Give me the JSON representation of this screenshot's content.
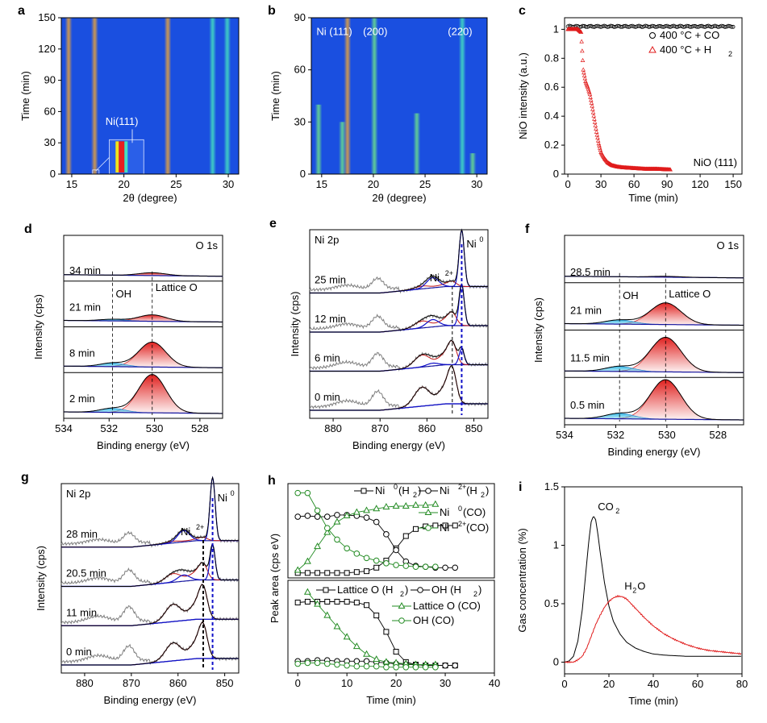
{
  "figure": {
    "panel_labels": [
      "a",
      "b",
      "c",
      "d",
      "e",
      "f",
      "g",
      "h",
      "i"
    ]
  },
  "colors": {
    "heatmap_bg": "#1a4fe0",
    "heatmap_line_orange": "#e8a33a",
    "heatmap_line_cyan": "#44e0c0",
    "heatmap_line_green": "#6ce08a",
    "co_series": "#000000",
    "h2_series": "#e01b1b",
    "envelope": "#000000",
    "background_line": "#1515a0",
    "lattice_fill": "#e0201e",
    "oh_fill": "#33bbe6",
    "ni0_fit": "#1010c8",
    "ni2_fit": "#c21818",
    "raw_spectrum": "#808080",
    "co_green": "#228b22"
  },
  "chart_data": [
    {
      "panel": "a",
      "type": "heatmap",
      "xlabel": "2θ (degree)",
      "ylabel": "Time (min)",
      "xlim": [
        14,
        31
      ],
      "ylim": [
        0,
        150
      ],
      "xticks": [
        15,
        20,
        25,
        30
      ],
      "yticks": [
        0,
        30,
        60,
        90,
        120,
        150
      ],
      "lines_2theta": [
        14.7,
        17.2,
        24.2,
        28.5,
        29.9
      ],
      "annotation": "Ni(111)"
    },
    {
      "panel": "b",
      "type": "heatmap",
      "xlabel": "2θ (degree)",
      "ylabel": "Time (min)",
      "xlim": [
        14,
        31
      ],
      "ylim": [
        0,
        90
      ],
      "xticks": [
        15,
        20,
        25,
        30
      ],
      "yticks": [
        0,
        30,
        60,
        90
      ],
      "lines_2theta": [
        14.7,
        17.0,
        17.5,
        20.1,
        24.2,
        28.6,
        29.6
      ],
      "annotations": [
        "Ni (111)",
        "(200)",
        "(220)"
      ]
    },
    {
      "panel": "c",
      "type": "scatter",
      "xlabel": "Time (min)",
      "ylabel": "NiO intensity (a.u.)",
      "xlim": [
        -3,
        158
      ],
      "ylim": [
        0,
        1.08
      ],
      "xticks": [
        0,
        30,
        60,
        90,
        120,
        150
      ],
      "yticks": [
        0,
        0.2,
        0.4,
        0.6,
        0.8,
        1.0
      ],
      "annotation": "NiO (111)",
      "series": [
        {
          "name": "400 °C + CO",
          "x": [
            0,
            150
          ],
          "y": [
            1.02,
            1.02
          ]
        },
        {
          "name": "400 °C + H2",
          "x": [
            0,
            6,
            9,
            12,
            14,
            16,
            18,
            20,
            22,
            24,
            26,
            28,
            30,
            33,
            36,
            40,
            45,
            50,
            60,
            70,
            80,
            93
          ],
          "y": [
            1.0,
            1.0,
            1.0,
            0.98,
            0.72,
            0.64,
            0.6,
            0.55,
            0.47,
            0.38,
            0.29,
            0.21,
            0.15,
            0.11,
            0.08,
            0.06,
            0.05,
            0.045,
            0.04,
            0.035,
            0.035,
            0.03
          ]
        }
      ],
      "legend": [
        "400 °C + CO",
        "400 °C + H",
        "2"
      ]
    },
    {
      "panel": "d",
      "type": "line",
      "xlabel": "Binding energy (eV)",
      "ylabel": "Intensity (cps)",
      "xlim": [
        534,
        527
      ],
      "xticks": [
        534,
        532,
        530,
        528
      ],
      "title_tag": "O 1s",
      "rows": [
        {
          "label": "34 min",
          "lattice_amp": 0.07,
          "oh_amp": 0.0
        },
        {
          "label": "21 min",
          "lattice_amp": 0.16,
          "oh_amp": 0.04
        },
        {
          "label": "8 min",
          "lattice_amp": 0.62,
          "oh_amp": 0.09
        },
        {
          "label": "2 min",
          "lattice_amp": 0.95,
          "oh_amp": 0.1
        }
      ],
      "peak_labels": [
        "OH",
        "Lattice O"
      ],
      "refs": [
        531.85,
        530.1
      ]
    },
    {
      "panel": "e",
      "type": "line",
      "xlabel": "Binding energy (eV)",
      "ylabel": "Intensity (cps)",
      "xlim": [
        885,
        847
      ],
      "xticks": [
        880,
        870,
        860,
        850
      ],
      "title_tag": "Ni 2p",
      "rows": [
        {
          "label": "25 min",
          "ni0": 0.9,
          "ni2": 0.08
        },
        {
          "label": "12 min",
          "ni0": 0.65,
          "ni2": 0.2
        },
        {
          "label": "6 min",
          "ni0": 0.25,
          "ni2": 0.35
        },
        {
          "label": "0 min",
          "ni0": 0.0,
          "ni2": 0.55
        }
      ],
      "peak_labels": [
        "Ni",
        "2+",
        "Ni",
        "0"
      ],
      "refs": [
        854.6,
        852.6
      ]
    },
    {
      "panel": "f",
      "type": "line",
      "xlabel": "Binding energy (eV)",
      "ylabel": "Intensity (cps)",
      "xlim": [
        534,
        527
      ],
      "xticks": [
        534,
        532,
        530,
        528
      ],
      "title_tag": "O 1s",
      "rows": [
        {
          "label": "28.5 min",
          "lattice_amp": 0.02,
          "oh_amp": 0.0
        },
        {
          "label": "21 min",
          "lattice_amp": 0.52,
          "oh_amp": 0.1
        },
        {
          "label": "11.5 min",
          "lattice_amp": 0.83,
          "oh_amp": 0.12
        },
        {
          "label": "0.5 min",
          "lattice_amp": 0.95,
          "oh_amp": 0.13
        }
      ],
      "peak_labels": [
        "OH",
        "Lattice O"
      ],
      "refs": [
        531.85,
        530.05
      ]
    },
    {
      "panel": "g",
      "type": "line",
      "xlabel": "Binding energy (eV)",
      "ylabel": "Intensity (cps)",
      "xlim": [
        885,
        847
      ],
      "xticks": [
        880,
        870,
        860,
        850
      ],
      "title_tag": "Ni 2p",
      "rows": [
        {
          "label": "28 min",
          "ni0": 1.0,
          "ni2": 0.05
        },
        {
          "label": "20.5 min",
          "ni0": 0.55,
          "ni2": 0.25
        },
        {
          "label": "11 min",
          "ni0": 0.0,
          "ni2": 0.5
        },
        {
          "label": "0 min",
          "ni0": 0.0,
          "ni2": 0.52
        }
      ],
      "peak_labels": [
        "Ni",
        "2+",
        "Ni",
        "0"
      ],
      "refs": [
        854.6,
        852.6
      ]
    },
    {
      "panel": "h",
      "type": "line",
      "xlabel": "Time (min)",
      "ylabel": "Peak area (cps eV)",
      "xlim": [
        -2,
        40
      ],
      "xticks": [
        0,
        10,
        20,
        30,
        40
      ],
      "top": {
        "legend": [
          "Ni",
          "0",
          " (H",
          "2",
          ")",
          "Ni",
          "2+",
          " (H",
          "2",
          ")",
          "Ni",
          "0",
          " (CO)",
          "Ni",
          "2+",
          " (CO)"
        ],
        "series": [
          {
            "key": "ni0_h2",
            "marker": "square",
            "color": "#000000",
            "x": [
              0,
              2,
              4,
              6,
              8,
              10,
              12,
              14,
              16,
              18,
              20,
              22,
              24,
              26,
              28,
              30,
              32
            ],
            "y": [
              0.02,
              0.02,
              0.02,
              0.02,
              0.02,
              0.02,
              0.03,
              0.04,
              0.08,
              0.16,
              0.3,
              0.44,
              0.52,
              0.55,
              0.56,
              0.56,
              0.56
            ]
          },
          {
            "key": "ni2_h2",
            "marker": "circle",
            "color": "#000000",
            "x": [
              0,
              2,
              4,
              6,
              8,
              10,
              12,
              14,
              16,
              18,
              20,
              22,
              24,
              26,
              28,
              30,
              32
            ],
            "y": [
              0.66,
              0.67,
              0.66,
              0.66,
              0.68,
              0.68,
              0.67,
              0.65,
              0.6,
              0.46,
              0.28,
              0.15,
              0.1,
              0.09,
              0.08,
              0.08,
              0.08
            ]
          },
          {
            "key": "ni0_co",
            "marker": "triangle",
            "color": "#228b22",
            "x": [
              0,
              2,
              4,
              6,
              8,
              10,
              12,
              14,
              16,
              18,
              20,
              22,
              24,
              26,
              28
            ],
            "y": [
              0.05,
              0.15,
              0.32,
              0.48,
              0.6,
              0.67,
              0.71,
              0.73,
              0.75,
              0.77,
              0.78,
              0.78,
              0.79,
              0.79,
              0.8
            ]
          },
          {
            "key": "ni2_co",
            "marker": "circle",
            "color": "#228b22",
            "x": [
              0,
              2,
              4,
              6,
              8,
              10,
              12,
              14,
              16,
              18,
              20,
              22,
              24,
              26,
              28
            ],
            "y": [
              0.93,
              0.93,
              0.73,
              0.53,
              0.4,
              0.3,
              0.24,
              0.19,
              0.16,
              0.13,
              0.11,
              0.1,
              0.09,
              0.09,
              0.09
            ]
          }
        ]
      },
      "bottom": {
        "legend": [
          "Lattice O (H",
          "2",
          ")",
          "OH (H",
          "2",
          ")",
          "Lattice O (CO)",
          "OH (CO)"
        ],
        "series": [
          {
            "key": "lat_h2",
            "marker": "square",
            "color": "#000000",
            "x": [
              0,
              2,
              4,
              6,
              8,
              10,
              12,
              14,
              16,
              18,
              20,
              22,
              24,
              26,
              28,
              30,
              32
            ],
            "y": [
              0.78,
              0.79,
              0.79,
              0.79,
              0.79,
              0.79,
              0.78,
              0.75,
              0.63,
              0.44,
              0.21,
              0.09,
              0.06,
              0.05,
              0.05,
              0.05,
              0.05
            ]
          },
          {
            "key": "oh_h2",
            "marker": "circle",
            "color": "#000000",
            "x": [
              0,
              2,
              4,
              6,
              8,
              10,
              12,
              14,
              16,
              18,
              20,
              22,
              24,
              26,
              28,
              30,
              32
            ],
            "y": [
              0.1,
              0.1,
              0.11,
              0.11,
              0.1,
              0.1,
              0.1,
              0.1,
              0.09,
              0.08,
              0.07,
              0.06,
              0.06,
              0.05,
              0.05,
              0.05,
              0.05
            ]
          },
          {
            "key": "lat_co",
            "marker": "triangle",
            "color": "#228b22",
            "x": [
              2,
              4,
              6,
              8,
              10,
              12,
              14,
              16,
              18,
              20,
              22,
              24,
              26,
              28
            ],
            "y": [
              0.9,
              0.76,
              0.63,
              0.5,
              0.38,
              0.27,
              0.18,
              0.12,
              0.09,
              0.08,
              0.07,
              0.06,
              0.06,
              0.06
            ]
          },
          {
            "key": "oh_co",
            "marker": "circle",
            "color": "#228b22",
            "x": [
              0,
              2,
              4,
              6,
              8,
              10,
              12,
              14,
              16,
              18,
              20,
              22,
              24,
              26,
              28
            ],
            "y": [
              0.07,
              0.08,
              0.08,
              0.07,
              0.06,
              0.05,
              0.04,
              0.04,
              0.04,
              0.03,
              0.03,
              0.03,
              0.03,
              0.03,
              0.03
            ]
          }
        ]
      }
    },
    {
      "panel": "i",
      "type": "line",
      "xlabel": "Time (min)",
      "ylabel": "Gas concentration (%)",
      "xlim": [
        0,
        80
      ],
      "ylim": [
        -0.1,
        1.5
      ],
      "xticks": [
        0,
        20,
        40,
        60,
        80
      ],
      "yticks": [
        0,
        0.5,
        1.0,
        1.5
      ],
      "series": [
        {
          "name": "CO2",
          "color": "#000000",
          "x": [
            0,
            2,
            4,
            6,
            8,
            10,
            11,
            12,
            13,
            14,
            15,
            16,
            18,
            20,
            22,
            25,
            28,
            32,
            36,
            40,
            45,
            50,
            55,
            60,
            65,
            70,
            75,
            80
          ],
          "y": [
            0,
            0.01,
            0.05,
            0.18,
            0.45,
            0.85,
            1.05,
            1.2,
            1.25,
            1.22,
            1.1,
            0.95,
            0.68,
            0.48,
            0.35,
            0.24,
            0.17,
            0.12,
            0.09,
            0.07,
            0.06,
            0.055,
            0.05,
            0.05,
            0.05,
            0.05,
            0.05,
            0.05
          ]
        },
        {
          "name": "H2O",
          "color": "#e01b1b",
          "x": [
            0,
            4,
            6,
            8,
            10,
            12,
            14,
            16,
            18,
            20,
            22,
            24,
            26,
            28,
            30,
            33,
            36,
            40,
            45,
            50,
            55,
            60,
            65,
            70,
            75,
            80
          ],
          "y": [
            0,
            0.0,
            0.02,
            0.05,
            0.12,
            0.22,
            0.32,
            0.4,
            0.47,
            0.52,
            0.55,
            0.565,
            0.56,
            0.54,
            0.5,
            0.44,
            0.38,
            0.31,
            0.24,
            0.19,
            0.15,
            0.12,
            0.1,
            0.09,
            0.08,
            0.07
          ]
        }
      ],
      "labels": [
        "CO",
        "2",
        "H",
        "2",
        "O"
      ]
    }
  ]
}
